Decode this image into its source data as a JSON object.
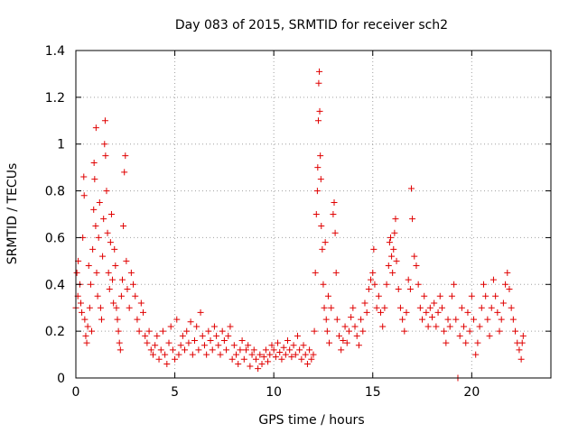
{
  "chart_data": {
    "type": "scatter",
    "title": "Day 083 of 2015, SRMTID for receiver sch2",
    "xlabel": "GPS time / hours",
    "ylabel": "SRMTID / TECUs",
    "xlim": [
      0,
      24
    ],
    "ylim": [
      0,
      1.4
    ],
    "xticks": [
      0,
      5,
      10,
      15,
      20
    ],
    "xtick_labels": [
      "0",
      "5",
      "10",
      "15",
      "20"
    ],
    "yticks": [
      0,
      0.2,
      0.4,
      0.6,
      0.8,
      1.0,
      1.2,
      1.4
    ],
    "ytick_labels": [
      "0",
      "0.2",
      "0.4",
      "0.6",
      "0.8",
      "1",
      "1.2",
      "1.4"
    ],
    "grid": true,
    "marker": "+",
    "color": "#e00000",
    "series": [
      {
        "name": "SRMTID",
        "points": [
          [
            0.0,
            0.3
          ],
          [
            0.05,
            0.45
          ],
          [
            0.1,
            0.35
          ],
          [
            0.12,
            0.5
          ],
          [
            0.2,
            0.4
          ],
          [
            0.25,
            0.32
          ],
          [
            0.3,
            0.28
          ],
          [
            0.35,
            0.6
          ],
          [
            0.4,
            0.86
          ],
          [
            0.42,
            0.78
          ],
          [
            0.45,
            0.25
          ],
          [
            0.5,
            0.18
          ],
          [
            0.55,
            0.15
          ],
          [
            0.6,
            0.22
          ],
          [
            0.65,
            0.48
          ],
          [
            0.7,
            0.3
          ],
          [
            0.75,
            0.4
          ],
          [
            0.8,
            0.2
          ],
          [
            0.85,
            0.55
          ],
          [
            0.9,
            0.72
          ],
          [
            0.92,
            0.92
          ],
          [
            0.95,
            0.85
          ],
          [
            1.0,
            0.65
          ],
          [
            1.02,
            1.07
          ],
          [
            1.05,
            0.45
          ],
          [
            1.1,
            0.35
          ],
          [
            1.15,
            0.6
          ],
          [
            1.2,
            0.75
          ],
          [
            1.25,
            0.3
          ],
          [
            1.3,
            0.25
          ],
          [
            1.35,
            0.52
          ],
          [
            1.4,
            0.68
          ],
          [
            1.45,
            1.0
          ],
          [
            1.48,
            1.1
          ],
          [
            1.5,
            0.95
          ],
          [
            1.55,
            0.8
          ],
          [
            1.6,
            0.62
          ],
          [
            1.65,
            0.45
          ],
          [
            1.7,
            0.38
          ],
          [
            1.75,
            0.58
          ],
          [
            1.8,
            0.7
          ],
          [
            1.85,
            0.42
          ],
          [
            1.9,
            0.32
          ],
          [
            1.95,
            0.55
          ],
          [
            2.0,
            0.48
          ],
          [
            2.05,
            0.3
          ],
          [
            2.1,
            0.25
          ],
          [
            2.15,
            0.2
          ],
          [
            2.2,
            0.15
          ],
          [
            2.25,
            0.12
          ],
          [
            2.3,
            0.35
          ],
          [
            2.35,
            0.42
          ],
          [
            2.4,
            0.65
          ],
          [
            2.45,
            0.88
          ],
          [
            2.5,
            0.95
          ],
          [
            2.55,
            0.5
          ],
          [
            2.6,
            0.38
          ],
          [
            2.7,
            0.3
          ],
          [
            2.8,
            0.45
          ],
          [
            2.9,
            0.4
          ],
          [
            3.0,
            0.35
          ],
          [
            3.1,
            0.25
          ],
          [
            3.2,
            0.2
          ],
          [
            3.3,
            0.32
          ],
          [
            3.4,
            0.28
          ],
          [
            3.5,
            0.18
          ],
          [
            3.6,
            0.15
          ],
          [
            3.7,
            0.2
          ],
          [
            3.8,
            0.12
          ],
          [
            3.9,
            0.1
          ],
          [
            4.0,
            0.14
          ],
          [
            4.1,
            0.18
          ],
          [
            4.2,
            0.08
          ],
          [
            4.3,
            0.12
          ],
          [
            4.4,
            0.2
          ],
          [
            4.5,
            0.1
          ],
          [
            4.6,
            0.06
          ],
          [
            4.7,
            0.15
          ],
          [
            4.8,
            0.22
          ],
          [
            4.9,
            0.12
          ],
          [
            5.0,
            0.08
          ],
          [
            5.1,
            0.25
          ],
          [
            5.2,
            0.1
          ],
          [
            5.3,
            0.14
          ],
          [
            5.4,
            0.18
          ],
          [
            5.5,
            0.12
          ],
          [
            5.6,
            0.2
          ],
          [
            5.7,
            0.15
          ],
          [
            5.8,
            0.24
          ],
          [
            5.9,
            0.1
          ],
          [
            6.0,
            0.16
          ],
          [
            6.1,
            0.22
          ],
          [
            6.2,
            0.12
          ],
          [
            6.3,
            0.28
          ],
          [
            6.4,
            0.18
          ],
          [
            6.5,
            0.14
          ],
          [
            6.6,
            0.1
          ],
          [
            6.7,
            0.2
          ],
          [
            6.8,
            0.16
          ],
          [
            6.9,
            0.12
          ],
          [
            7.0,
            0.22
          ],
          [
            7.1,
            0.18
          ],
          [
            7.2,
            0.14
          ],
          [
            7.3,
            0.1
          ],
          [
            7.4,
            0.2
          ],
          [
            7.5,
            0.16
          ],
          [
            7.6,
            0.12
          ],
          [
            7.7,
            0.18
          ],
          [
            7.8,
            0.22
          ],
          [
            7.9,
            0.08
          ],
          [
            8.0,
            0.14
          ],
          [
            8.1,
            0.1
          ],
          [
            8.2,
            0.06
          ],
          [
            8.3,
            0.12
          ],
          [
            8.4,
            0.16
          ],
          [
            8.5,
            0.08
          ],
          [
            8.6,
            0.12
          ],
          [
            8.7,
            0.14
          ],
          [
            8.8,
            0.05
          ],
          [
            8.9,
            0.1
          ],
          [
            9.0,
            0.12
          ],
          [
            9.1,
            0.08
          ],
          [
            9.2,
            0.04
          ],
          [
            9.3,
            0.1
          ],
          [
            9.4,
            0.06
          ],
          [
            9.5,
            0.09
          ],
          [
            9.6,
            0.12
          ],
          [
            9.7,
            0.07
          ],
          [
            9.8,
            0.1
          ],
          [
            9.9,
            0.14
          ],
          [
            10.0,
            0.12
          ],
          [
            10.1,
            0.09
          ],
          [
            10.2,
            0.15
          ],
          [
            10.3,
            0.11
          ],
          [
            10.4,
            0.08
          ],
          [
            10.5,
            0.13
          ],
          [
            10.6,
            0.1
          ],
          [
            10.7,
            0.16
          ],
          [
            10.8,
            0.12
          ],
          [
            10.9,
            0.09
          ],
          [
            11.0,
            0.14
          ],
          [
            11.1,
            0.1
          ],
          [
            11.2,
            0.18
          ],
          [
            11.3,
            0.12
          ],
          [
            11.4,
            0.08
          ],
          [
            11.5,
            0.14
          ],
          [
            11.6,
            0.1
          ],
          [
            11.7,
            0.06
          ],
          [
            11.8,
            0.12
          ],
          [
            11.9,
            0.08
          ],
          [
            12.0,
            0.1
          ],
          [
            12.05,
            0.2
          ],
          [
            12.1,
            0.45
          ],
          [
            12.15,
            0.7
          ],
          [
            12.2,
            0.8
          ],
          [
            12.22,
            0.9
          ],
          [
            12.25,
            1.1
          ],
          [
            12.27,
            1.26
          ],
          [
            12.3,
            1.31
          ],
          [
            12.32,
            1.14
          ],
          [
            12.35,
            0.95
          ],
          [
            12.38,
            0.85
          ],
          [
            12.4,
            0.65
          ],
          [
            12.45,
            0.55
          ],
          [
            12.5,
            0.4
          ],
          [
            12.55,
            0.3
          ],
          [
            12.6,
            0.58
          ],
          [
            12.65,
            0.25
          ],
          [
            12.7,
            0.2
          ],
          [
            12.75,
            0.35
          ],
          [
            12.8,
            0.15
          ],
          [
            12.9,
            0.3
          ],
          [
            13.0,
            0.7
          ],
          [
            13.05,
            0.75
          ],
          [
            13.1,
            0.62
          ],
          [
            13.15,
            0.45
          ],
          [
            13.2,
            0.25
          ],
          [
            13.3,
            0.18
          ],
          [
            13.4,
            0.12
          ],
          [
            13.5,
            0.16
          ],
          [
            13.6,
            0.22
          ],
          [
            13.7,
            0.15
          ],
          [
            13.8,
            0.2
          ],
          [
            13.9,
            0.26
          ],
          [
            14.0,
            0.3
          ],
          [
            14.1,
            0.22
          ],
          [
            14.2,
            0.18
          ],
          [
            14.3,
            0.14
          ],
          [
            14.4,
            0.25
          ],
          [
            14.5,
            0.2
          ],
          [
            14.6,
            0.32
          ],
          [
            14.7,
            0.28
          ],
          [
            14.8,
            0.38
          ],
          [
            14.9,
            0.42
          ],
          [
            15.0,
            0.45
          ],
          [
            15.05,
            0.55
          ],
          [
            15.1,
            0.4
          ],
          [
            15.2,
            0.3
          ],
          [
            15.3,
            0.35
          ],
          [
            15.4,
            0.28
          ],
          [
            15.5,
            0.22
          ],
          [
            15.6,
            0.3
          ],
          [
            15.7,
            0.4
          ],
          [
            15.8,
            0.48
          ],
          [
            15.85,
            0.58
          ],
          [
            15.9,
            0.6
          ],
          [
            15.95,
            0.52
          ],
          [
            16.0,
            0.45
          ],
          [
            16.05,
            0.55
          ],
          [
            16.1,
            0.62
          ],
          [
            16.15,
            0.68
          ],
          [
            16.2,
            0.5
          ],
          [
            16.3,
            0.38
          ],
          [
            16.4,
            0.3
          ],
          [
            16.5,
            0.25
          ],
          [
            16.6,
            0.2
          ],
          [
            16.7,
            0.28
          ],
          [
            16.8,
            0.42
          ],
          [
            16.9,
            0.38
          ],
          [
            16.95,
            0.81
          ],
          [
            17.0,
            0.68
          ],
          [
            17.1,
            0.52
          ],
          [
            17.2,
            0.48
          ],
          [
            17.3,
            0.4
          ],
          [
            17.4,
            0.3
          ],
          [
            17.5,
            0.25
          ],
          [
            17.6,
            0.35
          ],
          [
            17.7,
            0.28
          ],
          [
            17.8,
            0.22
          ],
          [
            17.9,
            0.3
          ],
          [
            18.0,
            0.26
          ],
          [
            18.1,
            0.32
          ],
          [
            18.2,
            0.22
          ],
          [
            18.3,
            0.28
          ],
          [
            18.4,
            0.35
          ],
          [
            18.5,
            0.3
          ],
          [
            18.6,
            0.2
          ],
          [
            18.7,
            0.15
          ],
          [
            18.8,
            0.25
          ],
          [
            18.9,
            0.22
          ],
          [
            19.0,
            0.35
          ],
          [
            19.1,
            0.4
          ],
          [
            19.2,
            0.25
          ],
          [
            19.3,
            0.0
          ],
          [
            19.4,
            0.18
          ],
          [
            19.5,
            0.3
          ],
          [
            19.6,
            0.22
          ],
          [
            19.7,
            0.15
          ],
          [
            19.8,
            0.28
          ],
          [
            19.9,
            0.2
          ],
          [
            20.0,
            0.35
          ],
          [
            20.1,
            0.25
          ],
          [
            20.2,
            0.1
          ],
          [
            20.3,
            0.15
          ],
          [
            20.4,
            0.22
          ],
          [
            20.5,
            0.3
          ],
          [
            20.6,
            0.4
          ],
          [
            20.7,
            0.35
          ],
          [
            20.8,
            0.25
          ],
          [
            20.9,
            0.18
          ],
          [
            21.0,
            0.3
          ],
          [
            21.1,
            0.42
          ],
          [
            21.2,
            0.35
          ],
          [
            21.3,
            0.28
          ],
          [
            21.4,
            0.2
          ],
          [
            21.5,
            0.25
          ],
          [
            21.6,
            0.32
          ],
          [
            21.7,
            0.4
          ],
          [
            21.8,
            0.45
          ],
          [
            21.9,
            0.38
          ],
          [
            22.0,
            0.3
          ],
          [
            22.1,
            0.25
          ],
          [
            22.2,
            0.2
          ],
          [
            22.3,
            0.15
          ],
          [
            22.4,
            0.12
          ],
          [
            22.5,
            0.08
          ],
          [
            22.55,
            0.15
          ],
          [
            22.6,
            0.18
          ]
        ]
      }
    ]
  }
}
